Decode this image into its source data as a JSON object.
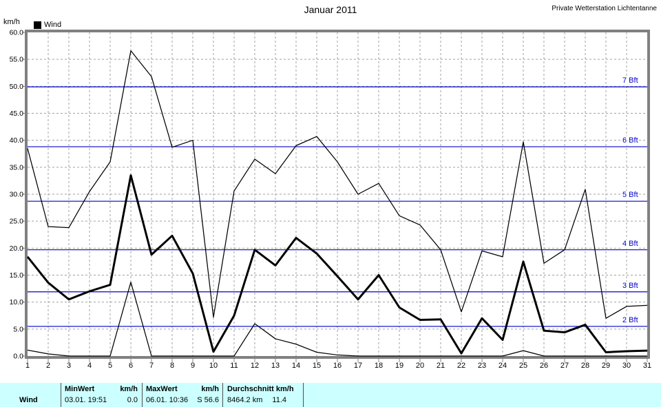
{
  "header": {
    "title": "Januar 2011",
    "station": "Private Wetterstation Lichtentanne",
    "y_axis_unit": "km/h",
    "legend_label": "Wind"
  },
  "chart_data": {
    "type": "line",
    "title": "Januar 2011",
    "ylabel": "km/h",
    "ylim": [
      0,
      60
    ],
    "y_tick_step": 5,
    "grid": "dashed-gray",
    "x": [
      1,
      2,
      3,
      4,
      5,
      6,
      7,
      8,
      9,
      10,
      11,
      12,
      13,
      14,
      15,
      16,
      17,
      18,
      19,
      20,
      21,
      22,
      23,
      24,
      25,
      26,
      27,
      28,
      29,
      30,
      31
    ],
    "series": [
      {
        "name": "Wind Maximum",
        "style": "thin",
        "values": [
          38.5,
          24.0,
          23.8,
          30.5,
          36.0,
          56.6,
          51.8,
          38.7,
          40.0,
          7.2,
          30.6,
          36.5,
          33.8,
          39.0,
          40.7,
          36.0,
          30.0,
          32.0,
          26.0,
          24.3,
          19.7,
          8.2,
          19.5,
          18.4,
          39.7,
          17.2,
          19.7,
          30.9,
          7.0,
          9.2,
          9.4
        ]
      },
      {
        "name": "Wind Durchschnitt",
        "style": "thick",
        "values": [
          18.4,
          13.6,
          10.5,
          12.0,
          13.2,
          33.5,
          18.8,
          22.3,
          15.3,
          0.8,
          7.5,
          19.7,
          16.8,
          21.9,
          19.0,
          14.8,
          10.5,
          15.0,
          9.0,
          6.7,
          6.8,
          0.5,
          7.0,
          3.0,
          17.5,
          4.7,
          4.4,
          5.8,
          0.7,
          0.9,
          1.0
        ]
      },
      {
        "name": "Wind Minimum",
        "style": "thin",
        "values": [
          1.1,
          0.4,
          0.0,
          0.0,
          0.0,
          13.7,
          0.0,
          0.0,
          0.0,
          0.0,
          0.0,
          6.0,
          3.2,
          2.2,
          0.7,
          0.2,
          0.0,
          0.0,
          0.0,
          0.0,
          0.0,
          0.0,
          0.0,
          0.0,
          1.0,
          0.0,
          0.0,
          0.0,
          0.0,
          0.0,
          0.0
        ]
      }
    ],
    "reference_lines": [
      {
        "label": "2 Bft",
        "value": 5.5
      },
      {
        "label": "3 Bft",
        "value": 11.9
      },
      {
        "label": "4 Bft",
        "value": 19.7
      },
      {
        "label": "5 Bft",
        "value": 28.7
      },
      {
        "label": "6 Bft",
        "value": 38.8
      },
      {
        "label": "7 Bft",
        "value": 49.9
      }
    ],
    "colors": {
      "series": "#000000",
      "reference": "#0000cc",
      "grid": "#a0a0a0",
      "border": "#808080"
    }
  },
  "table": {
    "row_label": "Wind",
    "columns": [
      {
        "header_left": "MinWert",
        "header_right": "km/h",
        "value_left": "03.01.  19:51",
        "value_right": "0.0"
      },
      {
        "header_left": "MaxWert",
        "header_right": "km/h",
        "value_left": "06.01.  10:36",
        "value_right": "S 56.6"
      },
      {
        "header_left": "Durchschnitt km/h",
        "header_right": "",
        "value_left": "8464.2 km",
        "value_right": "11.4"
      }
    ]
  }
}
